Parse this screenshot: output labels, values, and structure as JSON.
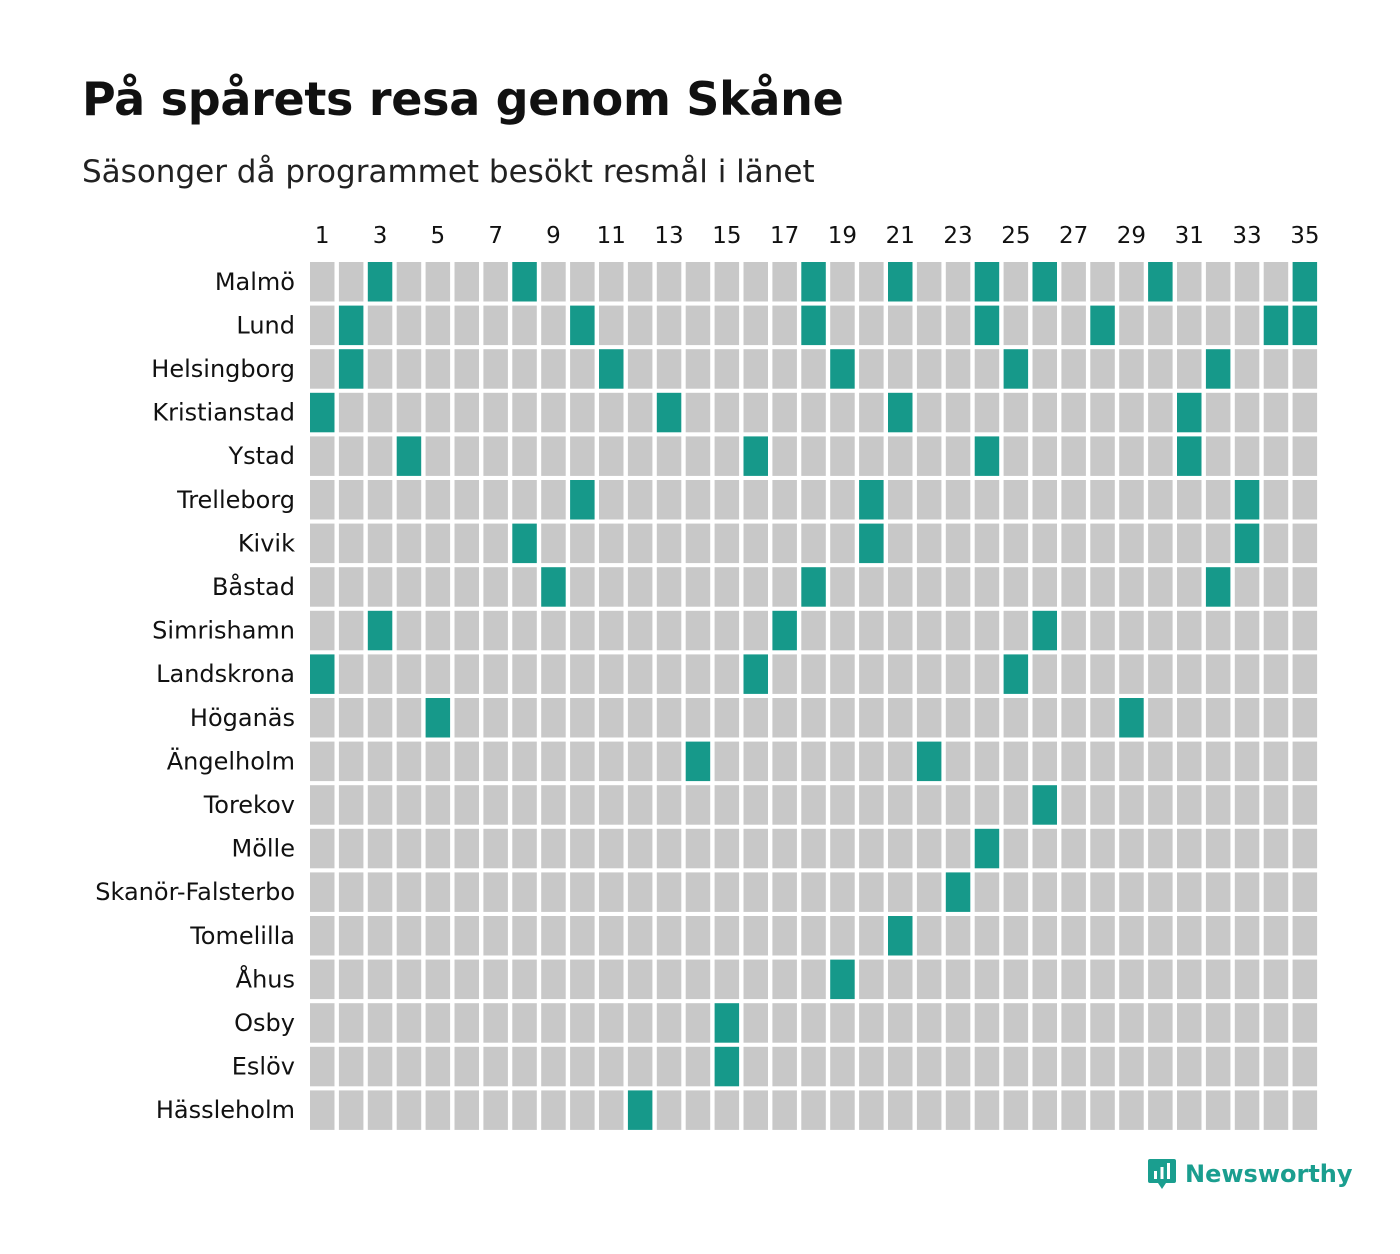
{
  "chart_data": {
    "type": "heatmap",
    "title": "På spårets resa genom Skåne",
    "subtitle": "Säsonger då programmet besökt resmål i länet",
    "seasons_count": 35,
    "x_tick_labels": [
      "1",
      "3",
      "5",
      "7",
      "9",
      "11",
      "13",
      "15",
      "17",
      "19",
      "21",
      "23",
      "25",
      "27",
      "29",
      "31",
      "33",
      "35"
    ],
    "rows": [
      {
        "place": "Malmö",
        "seasons": [
          3,
          8,
          18,
          21,
          24,
          26,
          30,
          35
        ]
      },
      {
        "place": "Lund",
        "seasons": [
          2,
          10,
          18,
          24,
          28,
          34,
          35
        ]
      },
      {
        "place": "Helsingborg",
        "seasons": [
          2,
          11,
          19,
          25,
          32
        ]
      },
      {
        "place": "Kristianstad",
        "seasons": [
          1,
          13,
          21,
          31
        ]
      },
      {
        "place": "Ystad",
        "seasons": [
          4,
          16,
          24,
          31
        ]
      },
      {
        "place": "Trelleborg",
        "seasons": [
          10,
          20,
          33
        ]
      },
      {
        "place": "Kivik",
        "seasons": [
          8,
          20,
          33
        ]
      },
      {
        "place": "Båstad",
        "seasons": [
          9,
          18,
          32
        ]
      },
      {
        "place": "Simrishamn",
        "seasons": [
          3,
          17,
          26
        ]
      },
      {
        "place": "Landskrona",
        "seasons": [
          1,
          16,
          25
        ]
      },
      {
        "place": "Höganäs",
        "seasons": [
          5,
          29
        ]
      },
      {
        "place": "Ängelholm",
        "seasons": [
          14,
          22
        ]
      },
      {
        "place": "Torekov",
        "seasons": [
          26
        ]
      },
      {
        "place": "Mölle",
        "seasons": [
          24
        ]
      },
      {
        "place": "Skanör-Falsterbo",
        "seasons": [
          23
        ]
      },
      {
        "place": "Tomelilla",
        "seasons": [
          21
        ]
      },
      {
        "place": "Åhus",
        "seasons": [
          19
        ]
      },
      {
        "place": "Osby",
        "seasons": [
          15
        ]
      },
      {
        "place": "Eslöv",
        "seasons": [
          15
        ]
      },
      {
        "place": "Hässleholm",
        "seasons": [
          12
        ]
      }
    ],
    "colors": {
      "visited": "#16998a",
      "not_visited": "#c8c8c8"
    },
    "legend": "none"
  },
  "brand": {
    "name": "Newsworthy",
    "logo_icon": "newsworthy-chart-bubble-icon",
    "color": "#1a9e8f"
  }
}
